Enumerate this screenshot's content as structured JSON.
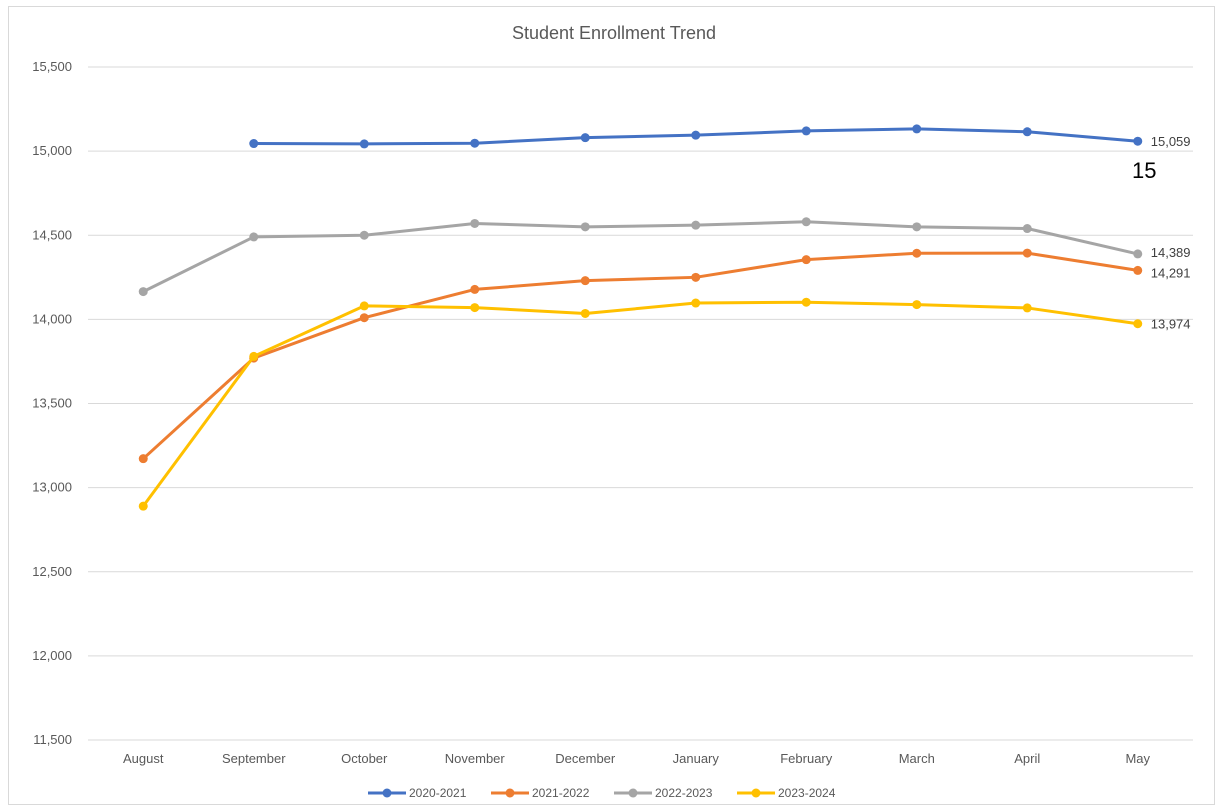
{
  "chart_data": {
    "type": "line",
    "title": "Student Enrollment Trend",
    "xlabel": "",
    "ylabel": "",
    "categories": [
      "August",
      "September",
      "October",
      "November",
      "December",
      "January",
      "February",
      "March",
      "April",
      "May"
    ],
    "ylim": [
      11500,
      15500
    ],
    "yticks": [
      11500,
      12000,
      12500,
      13000,
      13500,
      14000,
      14500,
      15000,
      15500
    ],
    "ytick_labels": [
      "11,500",
      "12,000",
      "12,500",
      "13,000",
      "13,500",
      "14,000",
      "14,500",
      "15,000",
      "15,500"
    ],
    "grid": true,
    "legend_position": "bottom",
    "series": [
      {
        "name": "2020-2021",
        "color": "#4472C4",
        "values": [
          null,
          15045,
          15043,
          15047,
          15080,
          15095,
          15120,
          15132,
          15115,
          15059
        ],
        "end_label": "15,059"
      },
      {
        "name": "2021-2022",
        "color": "#ED7D31",
        "values": [
          13172,
          13770,
          14010,
          14178,
          14230,
          14250,
          14355,
          14393,
          14394,
          14291
        ],
        "end_label": "14,291"
      },
      {
        "name": "2022-2023",
        "color": "#A5A5A5",
        "values": [
          14165,
          14490,
          14500,
          14570,
          14550,
          14560,
          14580,
          14550,
          14540,
          14389
        ],
        "end_label": "14,389"
      },
      {
        "name": "2023-2024",
        "color": "#FFC000",
        "values": [
          12890,
          13780,
          14080,
          14070,
          14035,
          14097,
          14102,
          14088,
          14068,
          13974
        ],
        "end_label": "13,974"
      }
    ],
    "annotation": "15"
  }
}
